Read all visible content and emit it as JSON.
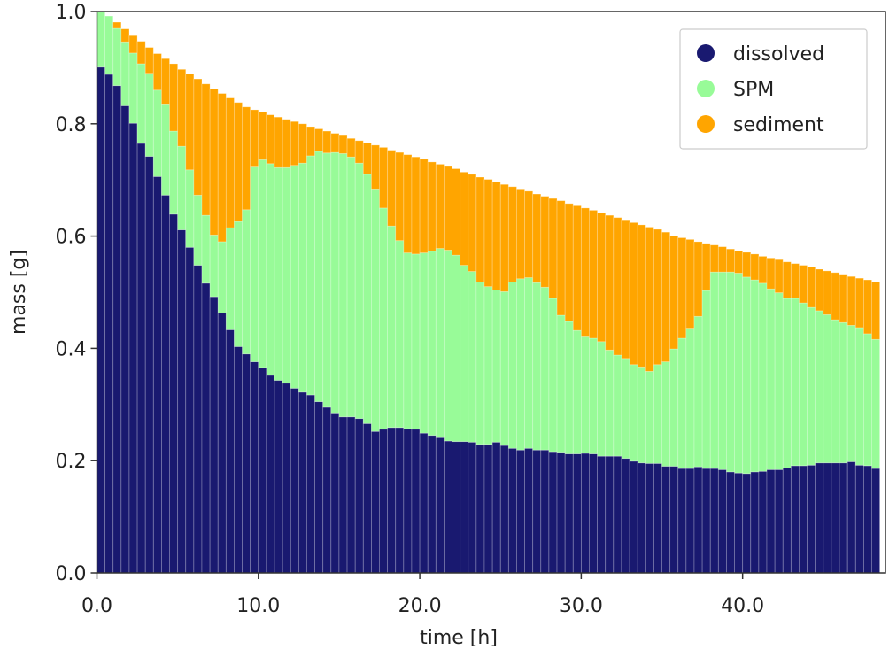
{
  "chart_data": {
    "type": "bar",
    "stacked": true,
    "title": "",
    "xlabel": "time [h]",
    "ylabel": "mass [g]",
    "xlim": [
      0,
      48.85
    ],
    "ylim": [
      0,
      1.0
    ],
    "bar_width": 0.5,
    "grid": false,
    "legend_position": "top-right",
    "xticks": [
      0,
      10,
      20,
      30,
      40
    ],
    "xtick_labels": [
      "0.0",
      "10.0",
      "20.0",
      "30.0",
      "40.0"
    ],
    "yticks": [
      0,
      0.2,
      0.4,
      0.6,
      0.8,
      1.0
    ],
    "ytick_labels": [
      "0.0",
      "0.2",
      "0.4",
      "0.6",
      "0.8",
      "1.0"
    ],
    "x": [
      0,
      0.5,
      1,
      1.5,
      2,
      2.5,
      3,
      3.5,
      4,
      4.5,
      5,
      5.5,
      6,
      6.5,
      7,
      7.5,
      8,
      8.5,
      9,
      9.5,
      10,
      10.5,
      11,
      11.5,
      12,
      12.5,
      13,
      13.5,
      14,
      14.5,
      15,
      15.5,
      16,
      16.5,
      17,
      17.5,
      18,
      18.5,
      19,
      19.5,
      20,
      20.5,
      21,
      21.5,
      22,
      22.5,
      23,
      23.5,
      24,
      24.5,
      25,
      25.5,
      26,
      26.5,
      27,
      27.5,
      28,
      28.5,
      29,
      29.5,
      30,
      30.5,
      31,
      31.5,
      32,
      32.5,
      33,
      33.5,
      34,
      34.5,
      35,
      35.5,
      36,
      36.5,
      37,
      37.5,
      38,
      38.5,
      39,
      39.5,
      40,
      40.5,
      41,
      41.5,
      42,
      42.5,
      43,
      43.5,
      44,
      44.5,
      45,
      45.5,
      46,
      46.5,
      47,
      47.5,
      48
    ],
    "series": [
      {
        "name": "dissolved",
        "color": "#191970",
        "values": [
          0.901,
          0.888,
          0.868,
          0.832,
          0.801,
          0.765,
          0.742,
          0.706,
          0.673,
          0.639,
          0.611,
          0.58,
          0.548,
          0.516,
          0.492,
          0.463,
          0.433,
          0.403,
          0.39,
          0.376,
          0.366,
          0.352,
          0.343,
          0.338,
          0.329,
          0.322,
          0.317,
          0.305,
          0.295,
          0.285,
          0.278,
          0.278,
          0.275,
          0.266,
          0.252,
          0.256,
          0.259,
          0.259,
          0.257,
          0.256,
          0.249,
          0.245,
          0.241,
          0.235,
          0.234,
          0.234,
          0.233,
          0.229,
          0.229,
          0.233,
          0.227,
          0.222,
          0.219,
          0.222,
          0.219,
          0.219,
          0.216,
          0.215,
          0.212,
          0.212,
          0.213,
          0.212,
          0.208,
          0.208,
          0.208,
          0.204,
          0.199,
          0.196,
          0.195,
          0.195,
          0.19,
          0.19,
          0.186,
          0.186,
          0.189,
          0.186,
          0.186,
          0.184,
          0.18,
          0.178,
          0.177,
          0.18,
          0.181,
          0.184,
          0.184,
          0.187,
          0.191,
          0.191,
          0.192,
          0.196,
          0.196,
          0.196,
          0.196,
          0.198,
          0.192,
          0.191,
          0.186
        ]
      },
      {
        "name": "SPM",
        "color": "#98FB98",
        "values": [
          0.099,
          0.104,
          0.102,
          0.114,
          0.125,
          0.142,
          0.148,
          0.154,
          0.161,
          0.148,
          0.149,
          0.138,
          0.125,
          0.121,
          0.11,
          0.127,
          0.182,
          0.223,
          0.257,
          0.347,
          0.37,
          0.377,
          0.379,
          0.384,
          0.397,
          0.408,
          0.426,
          0.446,
          0.453,
          0.464,
          0.469,
          0.463,
          0.455,
          0.444,
          0.432,
          0.394,
          0.359,
          0.333,
          0.313,
          0.312,
          0.321,
          0.328,
          0.337,
          0.34,
          0.332,
          0.314,
          0.304,
          0.289,
          0.281,
          0.271,
          0.274,
          0.296,
          0.305,
          0.304,
          0.298,
          0.29,
          0.273,
          0.244,
          0.236,
          0.22,
          0.209,
          0.206,
          0.204,
          0.189,
          0.18,
          0.178,
          0.172,
          0.171,
          0.164,
          0.176,
          0.186,
          0.209,
          0.232,
          0.25,
          0.268,
          0.317,
          0.35,
          0.352,
          0.356,
          0.356,
          0.35,
          0.342,
          0.335,
          0.322,
          0.315,
          0.302,
          0.298,
          0.29,
          0.281,
          0.271,
          0.264,
          0.255,
          0.25,
          0.243,
          0.245,
          0.235,
          0.23
        ]
      },
      {
        "name": "sediment",
        "color": "#FFA500",
        "values": [
          0,
          0,
          0.011,
          0.023,
          0.031,
          0.04,
          0.046,
          0.065,
          0.082,
          0.12,
          0.137,
          0.171,
          0.207,
          0.234,
          0.26,
          0.264,
          0.231,
          0.212,
          0.183,
          0.102,
          0.085,
          0.087,
          0.09,
          0.086,
          0.078,
          0.07,
          0.052,
          0.04,
          0.039,
          0.034,
          0.032,
          0.033,
          0.04,
          0.056,
          0.078,
          0.108,
          0.135,
          0.157,
          0.175,
          0.173,
          0.167,
          0.159,
          0.15,
          0.149,
          0.154,
          0.166,
          0.173,
          0.187,
          0.191,
          0.193,
          0.191,
          0.17,
          0.16,
          0.154,
          0.158,
          0.162,
          0.178,
          0.204,
          0.21,
          0.222,
          0.228,
          0.228,
          0.229,
          0.24,
          0.245,
          0.247,
          0.253,
          0.253,
          0.257,
          0.241,
          0.231,
          0.201,
          0.179,
          0.158,
          0.133,
          0.084,
          0.048,
          0.045,
          0.041,
          0.04,
          0.044,
          0.046,
          0.048,
          0.055,
          0.059,
          0.065,
          0.062,
          0.067,
          0.072,
          0.074,
          0.078,
          0.084,
          0.086,
          0.087,
          0.088,
          0.096,
          0.102
        ]
      }
    ]
  }
}
